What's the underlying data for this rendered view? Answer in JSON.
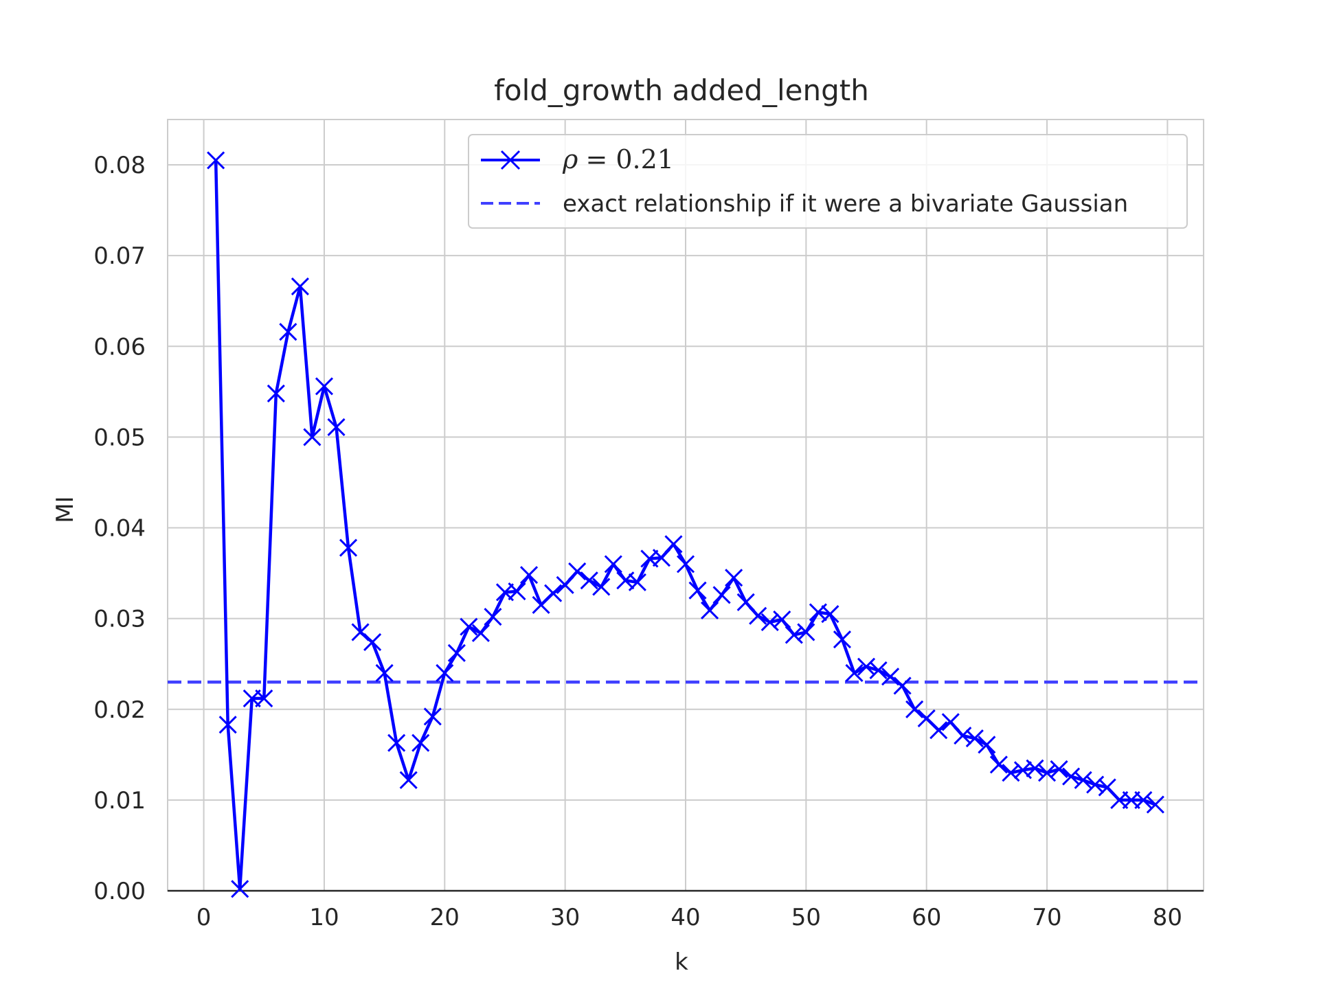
{
  "chart_data": {
    "type": "line",
    "title": "fold_growth added_length",
    "xlabel": "k",
    "ylabel": "MI",
    "xlim": [
      -3,
      83
    ],
    "ylim": [
      0.0,
      0.085
    ],
    "xticks": [
      0,
      10,
      20,
      30,
      40,
      50,
      60,
      70,
      80
    ],
    "xtick_labels": [
      "0",
      "10",
      "20",
      "30",
      "40",
      "50",
      "60",
      "70",
      "80"
    ],
    "yticks": [
      0.0,
      0.01,
      0.02,
      0.03,
      0.04,
      0.05,
      0.06,
      0.07,
      0.08
    ],
    "ytick_labels": [
      "0.00",
      "0.01",
      "0.02",
      "0.03",
      "0.04",
      "0.05",
      "0.06",
      "0.07",
      "0.08"
    ],
    "grid": true,
    "legend_position": "upper right",
    "series": [
      {
        "name": "ρ = 0.21",
        "legend_symbol": "ρ",
        "legend_value": "= 0.21",
        "color": "#0000ff",
        "marker": "x",
        "x": [
          1,
          2,
          3,
          4,
          5,
          6,
          7,
          8,
          9,
          10,
          11,
          12,
          13,
          14,
          15,
          16,
          17,
          18,
          19,
          20,
          21,
          22,
          23,
          24,
          25,
          26,
          27,
          28,
          29,
          30,
          31,
          32,
          33,
          34,
          35,
          36,
          37,
          38,
          39,
          40,
          41,
          42,
          43,
          44,
          45,
          46,
          47,
          48,
          49,
          50,
          51,
          52,
          53,
          54,
          55,
          56,
          57,
          58,
          59,
          60,
          61,
          62,
          63,
          64,
          65,
          66,
          67,
          68,
          69,
          70,
          71,
          72,
          73,
          74,
          75,
          76,
          77,
          78,
          79
        ],
        "y": [
          0.0805,
          0.0183,
          0.0002,
          0.0212,
          0.0212,
          0.0548,
          0.0616,
          0.0666,
          0.05,
          0.0556,
          0.0511,
          0.0378,
          0.0285,
          0.0274,
          0.024,
          0.0163,
          0.0122,
          0.0163,
          0.0192,
          0.024,
          0.0262,
          0.0291,
          0.0284,
          0.0302,
          0.0329,
          0.033,
          0.0348,
          0.0315,
          0.0328,
          0.0337,
          0.0352,
          0.0342,
          0.0335,
          0.036,
          0.0342,
          0.034,
          0.0366,
          0.0367,
          0.0382,
          0.036,
          0.0331,
          0.0309,
          0.0326,
          0.0345,
          0.0318,
          0.0303,
          0.0296,
          0.0299,
          0.0282,
          0.0285,
          0.0307,
          0.0305,
          0.0277,
          0.024,
          0.0247,
          0.0243,
          0.0236,
          0.0226,
          0.02,
          0.019,
          0.0177,
          0.0186,
          0.0171,
          0.0168,
          0.0161,
          0.0139,
          0.013,
          0.0133,
          0.0135,
          0.013,
          0.0134,
          0.0126,
          0.0122,
          0.0117,
          0.0114,
          0.01,
          0.01,
          0.01,
          0.0095
        ]
      },
      {
        "name": "exact relationship if it were a bivariate Gaussian",
        "color": "#4040ff",
        "style": "dashed",
        "y_constant": 0.023
      }
    ]
  }
}
